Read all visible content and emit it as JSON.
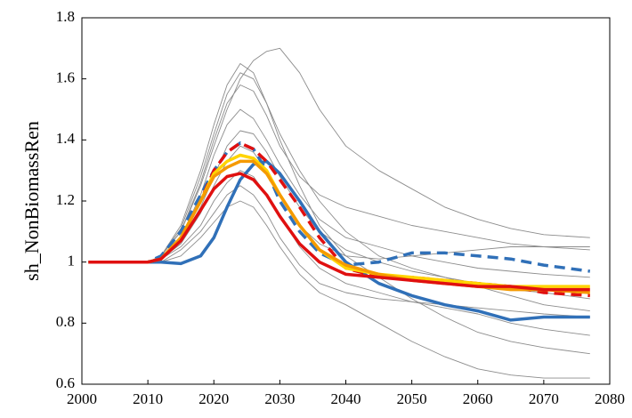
{
  "chart_data": {
    "type": "line",
    "y_label": "sh_NonBiomassRen",
    "x": [
      2001,
      2005,
      2010,
      2012,
      2015,
      2018,
      2020,
      2022,
      2024,
      2026,
      2028,
      2030,
      2033,
      2036,
      2040,
      2045,
      2050,
      2055,
      2060,
      2065,
      2070,
      2077
    ],
    "xlim": [
      2000,
      2080
    ],
    "xticks": [
      2000,
      2010,
      2020,
      2030,
      2040,
      2050,
      2060,
      2070,
      2080
    ],
    "ylim": [
      0.6,
      1.8
    ],
    "yticks": [
      0.6,
      0.8,
      1,
      1.2,
      1.4,
      1.6,
      1.8
    ],
    "grid": false,
    "series": [
      {
        "color": "#8c8c8c",
        "style": "thin",
        "values": [
          1,
          1,
          1,
          1.02,
          1.1,
          1.25,
          1.38,
          1.5,
          1.6,
          1.66,
          1.69,
          1.7,
          1.62,
          1.5,
          1.38,
          1.3,
          1.24,
          1.18,
          1.14,
          1.11,
          1.09,
          1.08
        ]
      },
      {
        "color": "#8c8c8c",
        "style": "thin",
        "values": [
          1,
          1,
          1,
          1.02,
          1.12,
          1.3,
          1.45,
          1.58,
          1.65,
          1.62,
          1.52,
          1.4,
          1.25,
          1.12,
          1.02,
          0.95,
          0.88,
          0.82,
          0.77,
          0.74,
          0.72,
          0.7
        ]
      },
      {
        "color": "#8c8c8c",
        "style": "thin",
        "values": [
          1,
          1,
          1,
          1.01,
          1.08,
          1.22,
          1.35,
          1.45,
          1.5,
          1.47,
          1.4,
          1.32,
          1.22,
          1.14,
          1.08,
          1.05,
          1.02,
          1.0,
          0.98,
          0.97,
          0.96,
          0.95
        ]
      },
      {
        "color": "#8c8c8c",
        "style": "thin",
        "values": [
          1,
          1,
          1,
          1.0,
          1.02,
          1.08,
          1.13,
          1.18,
          1.2,
          1.18,
          1.12,
          1.05,
          0.96,
          0.9,
          0.86,
          0.8,
          0.74,
          0.69,
          0.65,
          0.63,
          0.62,
          0.62
        ]
      },
      {
        "color": "#8c8c8c",
        "style": "thin",
        "values": [
          1,
          1,
          1,
          1.01,
          1.06,
          1.16,
          1.25,
          1.33,
          1.38,
          1.36,
          1.3,
          1.22,
          1.12,
          1.06,
          1.02,
          1.01,
          1.02,
          1.03,
          1.04,
          1.05,
          1.05,
          1.05
        ]
      },
      {
        "color": "#8c8c8c",
        "style": "thin",
        "values": [
          1,
          1,
          1,
          1.01,
          1.05,
          1.12,
          1.2,
          1.26,
          1.3,
          1.28,
          1.22,
          1.15,
          1.05,
          0.98,
          0.93,
          0.9,
          0.87,
          0.85,
          0.83,
          0.8,
          0.78,
          0.76
        ]
      },
      {
        "color": "#8c8c8c",
        "style": "thin",
        "values": [
          1,
          1,
          1,
          1.02,
          1.1,
          1.26,
          1.4,
          1.52,
          1.58,
          1.56,
          1.48,
          1.38,
          1.28,
          1.22,
          1.18,
          1.15,
          1.12,
          1.1,
          1.08,
          1.06,
          1.05,
          1.04
        ]
      },
      {
        "color": "#8c8c8c",
        "style": "thin",
        "values": [
          1,
          1,
          1,
          1.0,
          1.04,
          1.1,
          1.16,
          1.22,
          1.25,
          1.22,
          1.16,
          1.08,
          0.99,
          0.93,
          0.9,
          0.88,
          0.87,
          0.86,
          0.85,
          0.84,
          0.83,
          0.82
        ]
      },
      {
        "color": "#8c8c8c",
        "style": "thin",
        "values": [
          1,
          1,
          1,
          1.01,
          1.07,
          1.18,
          1.28,
          1.38,
          1.43,
          1.42,
          1.36,
          1.28,
          1.18,
          1.1,
          1.04,
          1.0,
          0.97,
          0.95,
          0.93,
          0.91,
          0.9,
          0.88
        ]
      },
      {
        "color": "#8c8c8c",
        "style": "thin",
        "values": [
          1,
          1,
          1,
          1.02,
          1.11,
          1.28,
          1.42,
          1.55,
          1.62,
          1.6,
          1.52,
          1.42,
          1.3,
          1.2,
          1.1,
          1.02,
          0.98,
          0.95,
          0.92,
          0.89,
          0.86,
          0.84
        ]
      },
      {
        "color": "#3070b8",
        "style": "dashed",
        "values": [
          1,
          1,
          1,
          1.02,
          1.1,
          1.22,
          1.3,
          1.36,
          1.39,
          1.37,
          1.3,
          1.2,
          1.1,
          1.03,
          0.99,
          1.0,
          1.03,
          1.03,
          1.02,
          1.01,
          0.99,
          0.97
        ]
      },
      {
        "color": "#3070b8",
        "style": "thick",
        "values": [
          1,
          1,
          1,
          1,
          0.995,
          1.02,
          1.08,
          1.18,
          1.27,
          1.32,
          1.33,
          1.29,
          1.2,
          1.1,
          1.0,
          0.93,
          0.89,
          0.86,
          0.84,
          0.81,
          0.82,
          0.82
        ]
      },
      {
        "color": "#e01010",
        "style": "dashed",
        "values": [
          1,
          1,
          1,
          1.01,
          1.08,
          1.2,
          1.3,
          1.36,
          1.39,
          1.37,
          1.33,
          1.27,
          1.18,
          1.08,
          0.98,
          0.95,
          0.95,
          0.94,
          0.93,
          0.92,
          0.9,
          0.89
        ]
      },
      {
        "color": "#ffd400",
        "style": "thick",
        "values": [
          1,
          1,
          1,
          1.01,
          1.08,
          1.2,
          1.29,
          1.33,
          1.35,
          1.34,
          1.3,
          1.22,
          1.12,
          1.04,
          0.98,
          0.96,
          0.95,
          0.94,
          0.93,
          0.92,
          0.92,
          0.92
        ]
      },
      {
        "color": "#f59a00",
        "style": "thick",
        "values": [
          1,
          1,
          1,
          1.01,
          1.08,
          1.2,
          1.28,
          1.31,
          1.33,
          1.33,
          1.29,
          1.22,
          1.12,
          1.04,
          0.99,
          0.96,
          0.94,
          0.93,
          0.92,
          0.91,
          0.91,
          0.9
        ]
      },
      {
        "color": "#e01010",
        "style": "thick",
        "values": [
          1,
          1,
          1,
          1.01,
          1.07,
          1.17,
          1.24,
          1.28,
          1.29,
          1.27,
          1.22,
          1.15,
          1.06,
          1.0,
          0.96,
          0.95,
          0.94,
          0.93,
          0.92,
          0.92,
          0.91,
          0.91
        ]
      }
    ]
  }
}
